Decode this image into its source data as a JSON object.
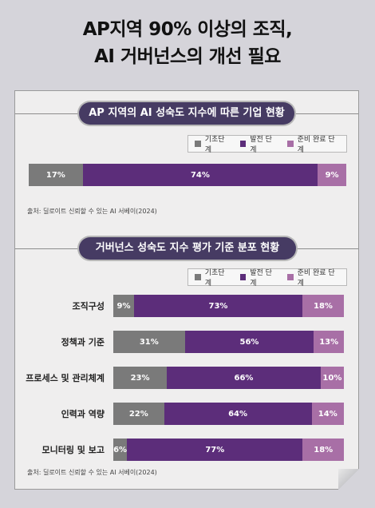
{
  "headline": {
    "line1": "AP지역 90% 이상의 조직,",
    "line2": "AI 거버넌스의 개선 필요"
  },
  "colors": {
    "basic": "#7a7a7a",
    "developing": "#5c2d7a",
    "ready": "#a86fa6",
    "pill": "#463b63"
  },
  "legend": [
    "기초단계",
    "발전 단계",
    "준비 완료 단계"
  ],
  "source": "출처: 딜로이트 신뢰할 수 있는 AI 서베이(2024)",
  "chart_data": [
    {
      "type": "bar",
      "stacked": true,
      "orientation": "horizontal",
      "title": "AP 지역의 AI 성숙도 지수에 따른 기업 현황",
      "categories": [
        ""
      ],
      "series": [
        {
          "name": "기초단계",
          "values": [
            17
          ]
        },
        {
          "name": "발전 단계",
          "values": [
            74
          ]
        },
        {
          "name": "준비 완료 단계",
          "values": [
            9
          ]
        }
      ],
      "legend_position": "top-right"
    },
    {
      "type": "bar",
      "stacked": true,
      "orientation": "horizontal",
      "title": "거버넌스 성숙도 지수 평가 기준 분포 현황",
      "categories": [
        "조직구성",
        "정책과 기준",
        "프로세스 및 관리체계",
        "인력과 역량",
        "모니터링 및 보고"
      ],
      "series": [
        {
          "name": "기초단계",
          "values": [
            9,
            31,
            23,
            22,
            6
          ]
        },
        {
          "name": "발전 단계",
          "values": [
            73,
            56,
            66,
            64,
            77
          ]
        },
        {
          "name": "준비 완료 단계",
          "values": [
            18,
            13,
            10,
            14,
            18
          ]
        }
      ],
      "legend_position": "top-right"
    }
  ]
}
